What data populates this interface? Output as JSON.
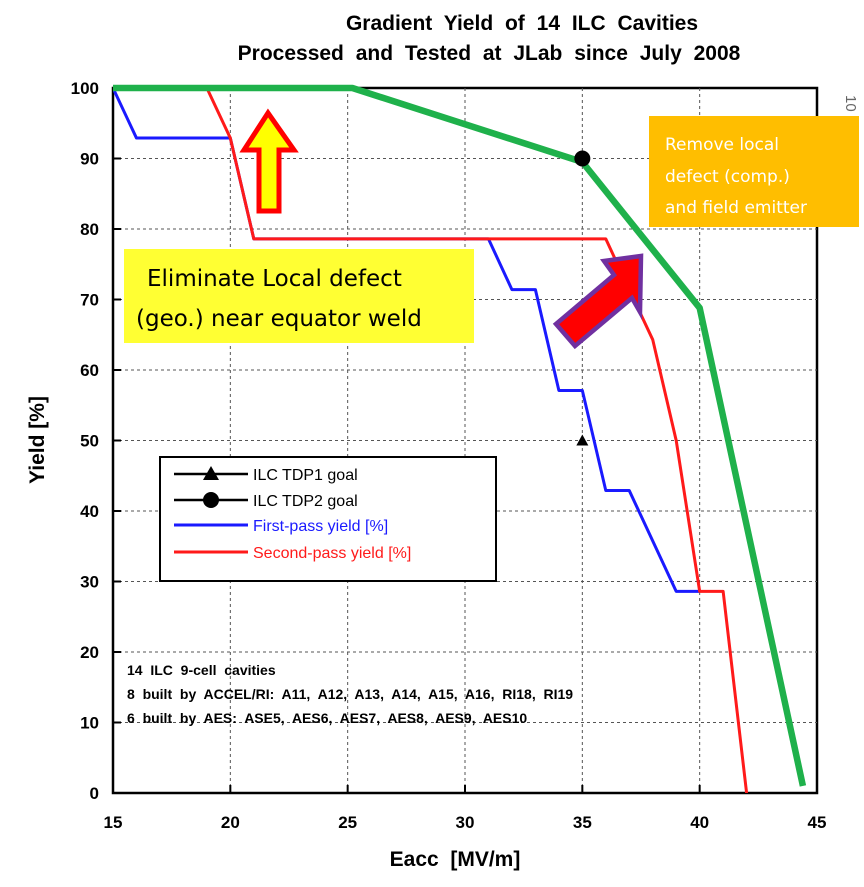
{
  "chart_data": {
    "type": "line",
    "title": "Gradient Yield of 14 ILC Cavities",
    "subtitle": "Processed and Tested at JLab since July 2008",
    "xlabel": "Eacc  [MV/m]",
    "ylabel": "Yield [%]",
    "xlim": [
      15,
      45
    ],
    "ylim": [
      0,
      100
    ],
    "xticks": [
      15,
      20,
      25,
      30,
      35,
      40,
      45
    ],
    "yticks": [
      0,
      10,
      20,
      30,
      40,
      50,
      60,
      70,
      80,
      90,
      100
    ],
    "grid": true,
    "legend_position": "middle-left",
    "series": [
      {
        "name": "ILC TDP1 goal",
        "kind": "marker",
        "marker": "triangle",
        "color": "#000000",
        "points": [
          [
            35,
            50
          ]
        ]
      },
      {
        "name": "ILC TDP2 goal",
        "kind": "marker",
        "marker": "circle",
        "color": "#000000",
        "points": [
          [
            35,
            90
          ]
        ]
      },
      {
        "name": "First-pass yield [%]",
        "kind": "step",
        "color": "#1a1aff",
        "points": [
          [
            15,
            100
          ],
          [
            16,
            92.9
          ],
          [
            20,
            92.9
          ],
          [
            21,
            78.6
          ],
          [
            31,
            78.6
          ],
          [
            32,
            71.4
          ],
          [
            33,
            71.4
          ],
          [
            34,
            57.1
          ],
          [
            35,
            57.1
          ],
          [
            36,
            42.9
          ],
          [
            37,
            42.9
          ],
          [
            39,
            28.6
          ],
          [
            40,
            28.6
          ]
        ]
      },
      {
        "name": "Second-pass yield [%]",
        "kind": "step",
        "color": "#ff1a1a",
        "points": [
          [
            19,
            100
          ],
          [
            20,
            92.9
          ],
          [
            21,
            78.6
          ],
          [
            36,
            78.6
          ],
          [
            37,
            71.4
          ],
          [
            38,
            64.3
          ],
          [
            39,
            50
          ],
          [
            40,
            28.6
          ],
          [
            41,
            28.6
          ],
          [
            42,
            0
          ]
        ]
      },
      {
        "kind": "overlay",
        "color": "#1fb14b",
        "points": [
          [
            15,
            100
          ],
          [
            25.2,
            100
          ],
          [
            35,
            89.5
          ],
          [
            40,
            68.8
          ],
          [
            44.4,
            1
          ]
        ]
      }
    ],
    "annotations": {
      "notes": [
        "14  ILC  9-cell  cavities",
        "8  built  by  ACCEL/RI:  A11,  A12,  A13,  A14,  A15,  A16,  RI18,  RI19",
        "6  built  by  AES:  ASE5,  AES6,  AES7,  AES8,  AES9,  AES10"
      ],
      "callout_left": [
        "Eliminate Local defect",
        "(geo.) near equator weld"
      ],
      "callout_right": [
        "Remove local",
        "defect (comp.)",
        "and field emitter"
      ],
      "callout_left_bg": "#ffff33",
      "callout_right_bg": "#ffbe00",
      "edge_text": "10"
    }
  }
}
